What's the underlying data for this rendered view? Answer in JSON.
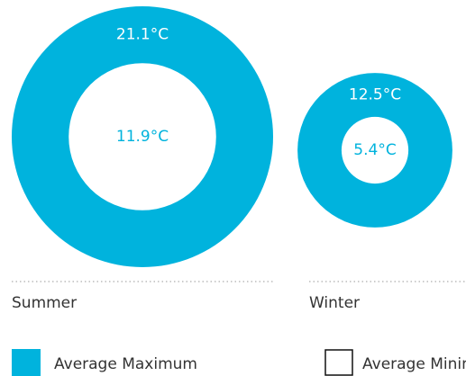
{
  "chart_data": {
    "type": "donut",
    "categories": [
      "Summer",
      "Winter"
    ],
    "series": [
      {
        "name": "Average Maximum",
        "color": "#00b3dd",
        "values": [
          21.1,
          12.5
        ],
        "value_labels": [
          "21.1°C",
          "12.5°C"
        ]
      },
      {
        "name": "Average Minimum",
        "color": "#ffffff",
        "values": [
          11.9,
          5.4
        ],
        "value_labels": [
          "11.9°C",
          "5.4°C"
        ]
      }
    ]
  }
}
